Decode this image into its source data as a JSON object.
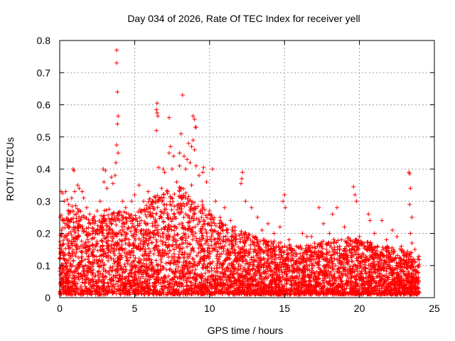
{
  "chart_data": {
    "type": "scatter",
    "title": "Day 034 of 2026, Rate Of TEC Index for receiver yell",
    "xlabel": "GPS time / hours",
    "ylabel": "ROTI / TECUs",
    "xlim": [
      0,
      25
    ],
    "ylim": [
      0,
      0.8
    ],
    "x_ticks": [
      0,
      5,
      10,
      15,
      20,
      25
    ],
    "y_ticks": [
      0,
      0.1,
      0.2,
      0.3,
      0.4,
      0.5,
      0.6,
      0.7,
      0.8
    ],
    "x_tick_labels": [
      "0",
      "5",
      "10",
      "15",
      "20",
      "25"
    ],
    "y_tick_labels": [
      "0",
      "0.1",
      "0.2",
      "0.3",
      "0.4",
      "0.5",
      "0.6",
      "0.7",
      "0.8"
    ],
    "grid": true,
    "marker": "+",
    "marker_color": "#ff0000",
    "series": [
      {
        "name": "ROTI",
        "points": [
          [
            3.8,
            0.77
          ],
          [
            3.8,
            0.73
          ],
          [
            3.85,
            0.64
          ],
          [
            3.9,
            0.565
          ],
          [
            3.85,
            0.54
          ],
          [
            3.8,
            0.475
          ],
          [
            3.9,
            0.45
          ],
          [
            3.75,
            0.42
          ],
          [
            6.5,
            0.605
          ],
          [
            6.45,
            0.585
          ],
          [
            6.5,
            0.575
          ],
          [
            6.55,
            0.565
          ],
          [
            6.45,
            0.52
          ],
          [
            7.3,
            0.56
          ],
          [
            8.2,
            0.63
          ],
          [
            8.1,
            0.51
          ],
          [
            8.9,
            0.565
          ],
          [
            9.0,
            0.555
          ],
          [
            9.05,
            0.53
          ],
          [
            9.1,
            0.53
          ],
          [
            8.9,
            0.49
          ],
          [
            8.6,
            0.48
          ],
          [
            8.8,
            0.47
          ],
          [
            9.0,
            0.46
          ],
          [
            7.4,
            0.47
          ],
          [
            7.3,
            0.45
          ],
          [
            7.6,
            0.44
          ],
          [
            8.0,
            0.45
          ],
          [
            8.3,
            0.44
          ],
          [
            8.5,
            0.43
          ],
          [
            8.7,
            0.42
          ],
          [
            9.1,
            0.41
          ],
          [
            9.6,
            0.405
          ],
          [
            9.55,
            0.39
          ],
          [
            10.2,
            0.4
          ],
          [
            6.6,
            0.405
          ],
          [
            6.9,
            0.4
          ],
          [
            7.0,
            0.39
          ],
          [
            7.5,
            0.4
          ],
          [
            8.0,
            0.41
          ],
          [
            8.4,
            0.4
          ],
          [
            9.3,
            0.38
          ],
          [
            9.8,
            0.36
          ],
          [
            0.9,
            0.4
          ],
          [
            0.95,
            0.395
          ],
          [
            2.9,
            0.4
          ],
          [
            3.05,
            0.395
          ],
          [
            2.95,
            0.36
          ],
          [
            3.15,
            0.34
          ],
          [
            3.45,
            0.375
          ],
          [
            3.55,
            0.355
          ],
          [
            3.7,
            0.38
          ],
          [
            12.2,
            0.39
          ],
          [
            12.15,
            0.37
          ],
          [
            12.1,
            0.355
          ],
          [
            23.3,
            0.39
          ],
          [
            23.35,
            0.385
          ],
          [
            23.4,
            0.34
          ],
          [
            23.35,
            0.29
          ],
          [
            23.5,
            0.25
          ],
          [
            23.4,
            0.2
          ],
          [
            23.5,
            0.17
          ],
          [
            19.6,
            0.345
          ],
          [
            19.7,
            0.32
          ],
          [
            19.8,
            0.3
          ],
          [
            18.5,
            0.28
          ],
          [
            18.2,
            0.26
          ],
          [
            17.3,
            0.28
          ],
          [
            17.6,
            0.23
          ],
          [
            15.0,
            0.32
          ],
          [
            14.9,
            0.3
          ],
          [
            15.05,
            0.28
          ],
          [
            16.2,
            0.2
          ],
          [
            16.5,
            0.19
          ],
          [
            20.6,
            0.26
          ],
          [
            20.7,
            0.24
          ],
          [
            21.5,
            0.24
          ],
          [
            22.2,
            0.21
          ],
          [
            22.5,
            0.19
          ],
          [
            21.0,
            0.2
          ],
          [
            19.0,
            0.22
          ],
          [
            18.0,
            0.2
          ],
          [
            0.1,
            0.33
          ],
          [
            0.2,
            0.325
          ],
          [
            0.4,
            0.33
          ],
          [
            0.3,
            0.3
          ],
          [
            0.5,
            0.305
          ],
          [
            0.6,
            0.29
          ],
          [
            0.8,
            0.31
          ],
          [
            1.0,
            0.33
          ],
          [
            1.2,
            0.35
          ],
          [
            1.3,
            0.34
          ],
          [
            1.5,
            0.33
          ],
          [
            1.6,
            0.31
          ],
          [
            1.8,
            0.28
          ],
          [
            2.0,
            0.26
          ],
          [
            2.2,
            0.24
          ],
          [
            2.5,
            0.27
          ],
          [
            2.7,
            0.3
          ],
          [
            4.2,
            0.3
          ],
          [
            4.4,
            0.28
          ],
          [
            4.6,
            0.26
          ],
          [
            4.8,
            0.3
          ],
          [
            5.0,
            0.32
          ],
          [
            5.3,
            0.35
          ],
          [
            5.6,
            0.3
          ],
          [
            5.9,
            0.33
          ],
          [
            6.2,
            0.3
          ],
          [
            6.8,
            0.34
          ],
          [
            7.2,
            0.33
          ],
          [
            7.8,
            0.36
          ],
          [
            8.8,
            0.35
          ],
          [
            9.5,
            0.3
          ],
          [
            10.0,
            0.27
          ],
          [
            10.4,
            0.3
          ],
          [
            10.7,
            0.25
          ],
          [
            11.0,
            0.28
          ],
          [
            11.4,
            0.24
          ],
          [
            11.7,
            0.22
          ],
          [
            12.4,
            0.3
          ],
          [
            12.8,
            0.28
          ],
          [
            13.2,
            0.25
          ],
          [
            13.5,
            0.21
          ],
          [
            13.9,
            0.23
          ],
          [
            14.3,
            0.2
          ],
          [
            14.7,
            0.22
          ],
          [
            15.3,
            0.18
          ],
          [
            15.8,
            0.16
          ],
          [
            16.8,
            0.19
          ],
          [
            17.0,
            0.17
          ],
          [
            17.8,
            0.15
          ],
          [
            18.8,
            0.18
          ],
          [
            19.3,
            0.16
          ],
          [
            20.0,
            0.19
          ],
          [
            20.3,
            0.17
          ],
          [
            21.2,
            0.16
          ],
          [
            21.8,
            0.18
          ],
          [
            22.0,
            0.14
          ],
          [
            22.8,
            0.16
          ],
          [
            23.0,
            0.13
          ],
          [
            23.7,
            0.15
          ],
          [
            23.9,
            0.12
          ]
        ],
        "density_profile": {
          "x_hours": [
            0,
            1,
            2,
            3,
            4,
            5,
            6,
            7,
            8,
            9,
            10,
            11,
            12,
            13,
            14,
            15,
            16,
            17,
            18,
            19,
            20,
            21,
            22,
            23,
            24
          ],
          "typical_max_roti": [
            0.25,
            0.28,
            0.24,
            0.27,
            0.26,
            0.25,
            0.3,
            0.32,
            0.34,
            0.3,
            0.26,
            0.22,
            0.2,
            0.18,
            0.17,
            0.16,
            0.15,
            0.16,
            0.17,
            0.18,
            0.17,
            0.16,
            0.15,
            0.14,
            0.12
          ]
        }
      }
    ]
  }
}
